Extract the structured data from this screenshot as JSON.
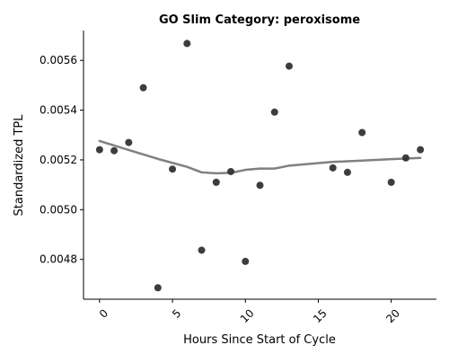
{
  "chart_data": {
    "type": "scatter",
    "title": "GO Slim Category: peroxisome",
    "xlabel": "Hours Since Start of Cycle",
    "ylabel": "Standardized TPL",
    "xlim": [
      -1.1,
      23.1
    ],
    "ylim": [
      0.00464,
      0.00572
    ],
    "xticks": [
      0,
      5,
      10,
      15,
      20
    ],
    "xtick_labels": [
      "0",
      "5",
      "10",
      "15",
      "20"
    ],
    "yticks": [
      0.0048,
      0.005,
      0.0052,
      0.0054,
      0.0056
    ],
    "ytick_labels": [
      "0.0048",
      "0.0050",
      "0.0052",
      "0.0054",
      "0.0056"
    ],
    "xtick_rotation_deg": 45,
    "grid": false,
    "spines": "left-bottom",
    "points": [
      {
        "x": 0,
        "y": 0.005241
      },
      {
        "x": 1,
        "y": 0.005237
      },
      {
        "x": 2,
        "y": 0.00527
      },
      {
        "x": 3,
        "y": 0.00549
      },
      {
        "x": 4,
        "y": 0.004686
      },
      {
        "x": 5,
        "y": 0.005163
      },
      {
        "x": 6,
        "y": 0.005668
      },
      {
        "x": 7,
        "y": 0.004837
      },
      {
        "x": 8,
        "y": 0.00511
      },
      {
        "x": 9,
        "y": 0.005153
      },
      {
        "x": 10,
        "y": 0.004792
      },
      {
        "x": 11,
        "y": 0.005098
      },
      {
        "x": 12,
        "y": 0.005392
      },
      {
        "x": 13,
        "y": 0.005577
      },
      {
        "x": 16,
        "y": 0.005168
      },
      {
        "x": 17,
        "y": 0.00515
      },
      {
        "x": 18,
        "y": 0.00531
      },
      {
        "x": 20,
        "y": 0.00511
      },
      {
        "x": 21,
        "y": 0.005208
      },
      {
        "x": 22,
        "y": 0.005241
      }
    ],
    "trend_line": {
      "x": [
        0,
        2,
        4,
        6,
        7,
        8,
        9,
        10,
        11,
        12,
        13,
        16,
        18,
        20,
        22
      ],
      "y": [
        0.005276,
        0.00524,
        0.005204,
        0.005172,
        0.00515,
        0.005146,
        0.005148,
        0.00516,
        0.005165,
        0.005165,
        0.005177,
        0.005192,
        0.005197,
        0.005203,
        0.005208
      ]
    },
    "colors": {
      "points": "#333333",
      "trend_line": "#808080",
      "axes": "#000000"
    }
  }
}
